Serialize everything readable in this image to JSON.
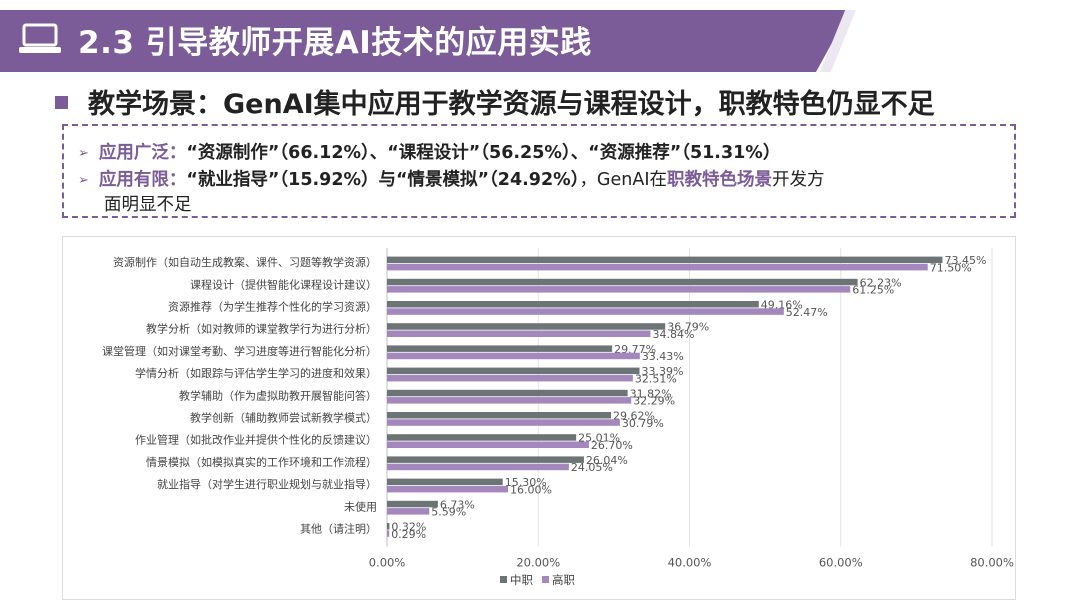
{
  "header": {
    "title": "2.3 引导教师开展AI技术的应用实践",
    "icon": "laptop-icon",
    "accent_color": "#7b5b98"
  },
  "subheading": "教学场景：GenAI集中应用于教学资源与课程设计，职教特色仍显不足",
  "summary": {
    "line1": {
      "label": "应用广泛：",
      "text": "“资源制作”（66.12%）、“课程设计”（56.25%）、“资源推荐”（51.31%）"
    },
    "line2": {
      "label": "应用有限：",
      "text_a": "“就业指导”（15.92%）与“情景模拟”（24.92%）",
      "text_b": "，GenAI在",
      "highlight": "职教特色场景",
      "text_c": "开发方",
      "text_d": "面明显不足"
    }
  },
  "chart_data": {
    "type": "bar",
    "orientation": "horizontal",
    "categories": [
      "资源制作（如自动生成教案、课件、习题等教学资源）",
      "课程设计（提供智能化课程设计建议）",
      "资源推荐（为学生推荐个性化的学习资源）",
      "教学分析（如对教师的课堂教学行为进行分析）",
      "课堂管理（如对课堂考勤、学习进度等进行智能化分析）",
      "学情分析（如跟踪与评估学生学习的进度和效果）",
      "教学辅助（作为虚拟助教开展智能问答）",
      "教学创新（辅助教师尝试新教学模式）",
      "作业管理（如批改作业并提供个性化的反馈建议）",
      "情景模拟（如模拟真实的工作环境和工作流程）",
      "就业指导（对学生进行职业规划与就业指导）",
      "未使用",
      "其他（请注明）"
    ],
    "series": [
      {
        "name": "中职",
        "color": "#6d7475",
        "values": [
          73.45,
          62.23,
          49.16,
          36.79,
          29.77,
          33.39,
          31.82,
          29.62,
          25.01,
          26.04,
          15.3,
          6.73,
          0.32
        ]
      },
      {
        "name": "高职",
        "color": "#a387bd",
        "values": [
          71.5,
          61.25,
          52.47,
          34.84,
          33.43,
          32.51,
          32.29,
          30.79,
          26.7,
          24.05,
          16.0,
          5.59,
          0.29
        ]
      }
    ],
    "value_labels": [
      [
        "73.45%",
        "62.23%",
        "49.16%",
        "36.79%",
        "29.77%",
        "33.39%",
        "31.82%",
        "29.62%",
        "25.01%",
        "26.04%",
        "15.30%",
        "6.73%",
        "0.32%"
      ],
      [
        "71.50%",
        "61.25%",
        "52.47%",
        "34.84%",
        "33.43%",
        "32.51%",
        "32.29%",
        "30.79%",
        "26.70%",
        "24.05%",
        "16.00%",
        "5.59%",
        "0.29%"
      ]
    ],
    "x_ticks": [
      0,
      20,
      40,
      60,
      80
    ],
    "x_tick_labels": [
      "0.00%",
      "20.00%",
      "40.00%",
      "60.00%",
      "80.00%"
    ],
    "xlim": [
      0,
      80
    ],
    "grid": true,
    "legend_position": "bottom-center"
  }
}
